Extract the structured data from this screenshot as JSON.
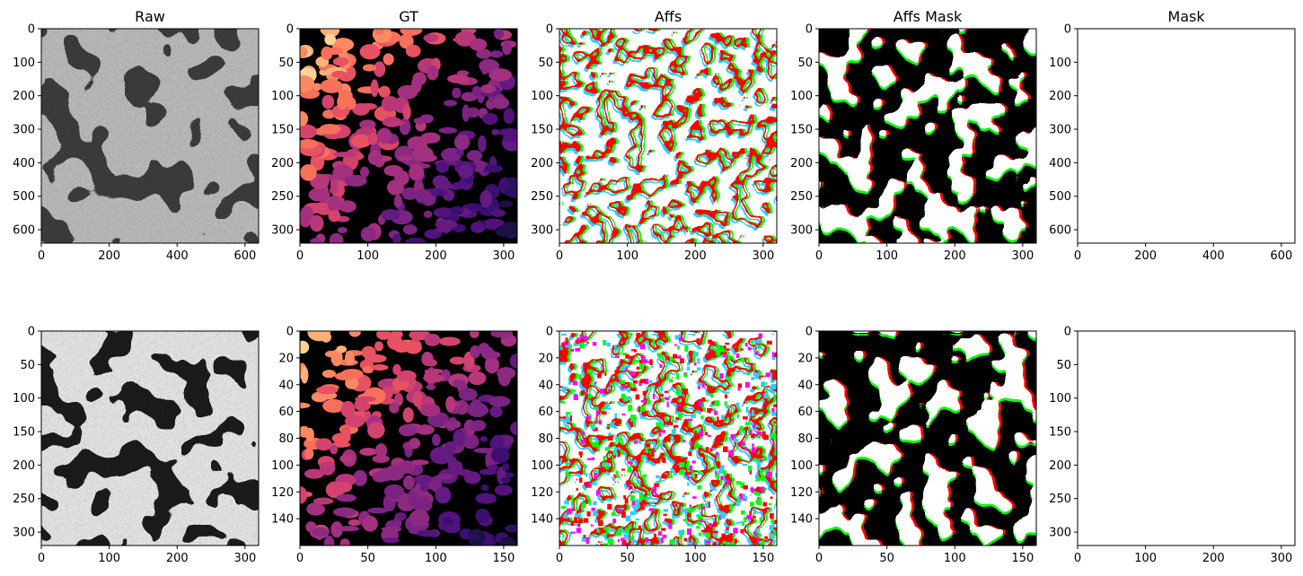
{
  "figure": {
    "background": "#ffffff"
  },
  "chart_data": [
    {
      "type": "heatmap",
      "title": "Raw",
      "image": "raw",
      "xlim": [
        0,
        640
      ],
      "ylim": [
        640,
        0
      ],
      "xticks": [
        0,
        200,
        400,
        600
      ],
      "yticks": [
        0,
        100,
        200,
        300,
        400,
        500,
        600
      ]
    },
    {
      "type": "heatmap",
      "title": "GT",
      "image": "gt",
      "xlim": [
        0,
        320
      ],
      "ylim": [
        320,
        0
      ],
      "xticks": [
        0,
        100,
        200,
        300
      ],
      "yticks": [
        0,
        50,
        100,
        150,
        200,
        250,
        300
      ]
    },
    {
      "type": "heatmap",
      "title": "Affs",
      "image": "affs",
      "xlim": [
        0,
        320
      ],
      "ylim": [
        320,
        0
      ],
      "xticks": [
        0,
        100,
        200,
        300
      ],
      "yticks": [
        0,
        50,
        100,
        150,
        200,
        250,
        300
      ]
    },
    {
      "type": "heatmap",
      "title": "Affs Mask",
      "image": "affs_mask",
      "xlim": [
        0,
        320
      ],
      "ylim": [
        320,
        0
      ],
      "xticks": [
        0,
        100,
        200,
        300
      ],
      "yticks": [
        0,
        50,
        100,
        150,
        200,
        250,
        300
      ]
    },
    {
      "type": "heatmap",
      "title": "Mask",
      "image": "mask",
      "xlim": [
        0,
        640
      ],
      "ylim": [
        640,
        0
      ],
      "xticks": [
        0,
        200,
        400,
        600
      ],
      "yticks": [
        0,
        100,
        200,
        300,
        400,
        500,
        600
      ]
    },
    {
      "type": "heatmap",
      "title": "",
      "image": "raw",
      "xlim": [
        0,
        320
      ],
      "ylim": [
        320,
        0
      ],
      "xticks": [
        0,
        100,
        200,
        300
      ],
      "yticks": [
        0,
        50,
        100,
        150,
        200,
        250,
        300
      ]
    },
    {
      "type": "heatmap",
      "title": "",
      "image": "gt",
      "xlim": [
        0,
        160
      ],
      "ylim": [
        160,
        0
      ],
      "xticks": [
        0,
        50,
        100,
        150
      ],
      "yticks": [
        0,
        20,
        40,
        60,
        80,
        100,
        120,
        140
      ]
    },
    {
      "type": "heatmap",
      "title": "",
      "image": "affs",
      "xlim": [
        0,
        160
      ],
      "ylim": [
        160,
        0
      ],
      "xticks": [
        0,
        50,
        100,
        150
      ],
      "yticks": [
        0,
        20,
        40,
        60,
        80,
        100,
        120,
        140
      ]
    },
    {
      "type": "heatmap",
      "title": "",
      "image": "affs_mask",
      "xlim": [
        0,
        160
      ],
      "ylim": [
        160,
        0
      ],
      "xticks": [
        0,
        50,
        100,
        150
      ],
      "yticks": [
        0,
        20,
        40,
        60,
        80,
        100,
        120,
        140
      ]
    },
    {
      "type": "heatmap",
      "title": "",
      "image": "mask",
      "xlim": [
        0,
        320
      ],
      "ylim": [
        320,
        0
      ],
      "xticks": [
        0,
        100,
        200,
        300
      ],
      "yticks": [
        0,
        50,
        100,
        150,
        200,
        250,
        300
      ]
    }
  ],
  "colors": {
    "gt_palette": [
      "#1c1044",
      "#2d1160",
      "#3b0f70",
      "#51127c",
      "#641a80",
      "#7b2382",
      "#8c2981",
      "#a3307e",
      "#b73779",
      "#d3436e",
      "#e75263",
      "#f7705c",
      "#fc8961",
      "#feb078",
      "#fcd497"
    ],
    "affs": [
      "#ff0000",
      "#00ff00",
      "#33ccff",
      "#ff00ff"
    ]
  }
}
